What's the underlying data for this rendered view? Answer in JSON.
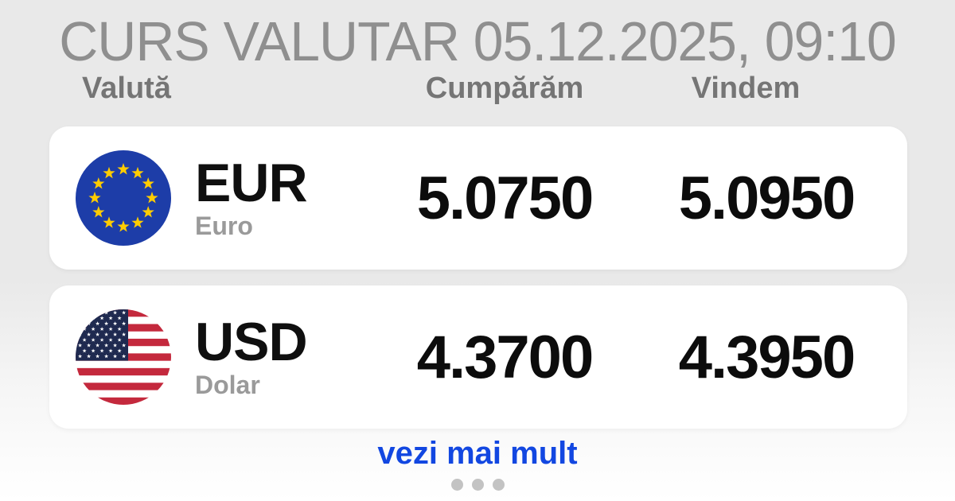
{
  "header": {
    "title": "CURS VALUTAR 05.12.2025, 09:10"
  },
  "table": {
    "columns": {
      "currency": "Valută",
      "buy": "Cumpărăm",
      "sell": "Vindem"
    },
    "rows": [
      {
        "code": "EUR",
        "name": "Euro",
        "buy": "5.0750",
        "sell": "5.0950",
        "flag": "eu-flag-icon"
      },
      {
        "code": "USD",
        "name": "Dolar",
        "buy": "4.3700",
        "sell": "4.3950",
        "flag": "us-flag-icon"
      }
    ]
  },
  "footer": {
    "more_label": "vezi mai mult",
    "pagination_dots": 3
  },
  "colors": {
    "background_top": "#e9e9e9",
    "background_bottom": "#ffffff",
    "card": "#ffffff",
    "title_text": "#8f8f8f",
    "header_text": "#757575",
    "code_text": "#0f0f0f",
    "rate_text": "#0c0c0c",
    "subtext": "#9a9a9a",
    "link_blue": "#1247e1",
    "dot_gray": "#c3c3c3",
    "eu_blue": "#1d3da8",
    "eu_star_gold": "#ffcc00",
    "us_red": "#c4293d",
    "us_navy": "#1f2a50"
  }
}
